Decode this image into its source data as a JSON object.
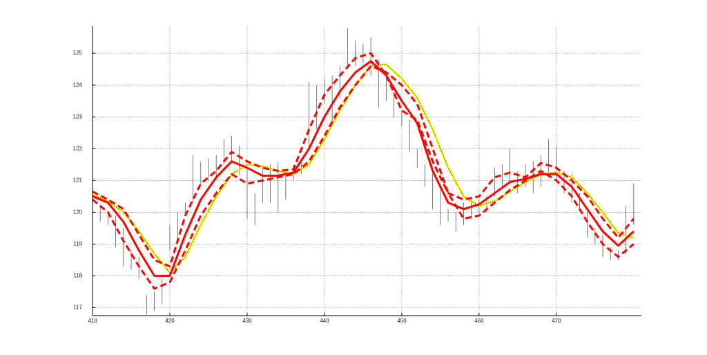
{
  "chart_data": {
    "type": "line",
    "x": [
      410,
      412,
      414,
      416,
      418,
      420,
      422,
      424,
      426,
      428,
      430,
      432,
      434,
      436,
      438,
      440,
      442,
      444,
      446,
      448,
      450,
      452,
      454,
      456,
      458,
      460,
      462,
      464,
      466,
      468,
      470,
      472,
      474,
      476,
      478,
      480
    ],
    "series": [
      {
        "color": "#ffff00",
        "style": "solid",
        "overlay": "#000000",
        "values": [
          120.55,
          120.35,
          120.0,
          119.4,
          118.7,
          118.1,
          118.6,
          119.6,
          120.5,
          121.2,
          121.5,
          121.45,
          121.3,
          121.2,
          121.5,
          122.3,
          123.2,
          124.0,
          124.6,
          124.65,
          124.2,
          123.6,
          122.6,
          121.4,
          120.5,
          120.2,
          120.35,
          120.65,
          120.95,
          121.2,
          121.25,
          121.1,
          120.6,
          120.0,
          119.35,
          119.2
        ]
      },
      {
        "color": "#ff0000",
        "style": "dashed",
        "values": [
          120.65,
          120.4,
          120.1,
          119.3,
          118.5,
          118.3,
          119.9,
          120.9,
          121.3,
          121.9,
          121.6,
          121.4,
          121.3,
          121.35,
          122.6,
          123.7,
          124.3,
          124.85,
          125.0,
          124.3,
          123.2,
          122.9,
          121.6,
          120.6,
          120.4,
          120.5,
          121.1,
          121.25,
          121.1,
          121.55,
          121.4,
          121.0,
          120.5,
          119.8,
          119.2,
          119.8
        ]
      },
      {
        "color": "#ff0000",
        "style": "dashed",
        "values": [
          120.4,
          120.0,
          119.1,
          118.3,
          117.6,
          117.8,
          118.8,
          119.9,
          120.6,
          121.2,
          120.9,
          121.0,
          121.1,
          121.2,
          121.6,
          122.4,
          123.3,
          124.0,
          124.6,
          124.4,
          124.0,
          123.4,
          122.0,
          120.6,
          119.8,
          119.9,
          120.3,
          120.7,
          121.0,
          121.3,
          121.0,
          120.5,
          119.7,
          119.0,
          118.6,
          119.0
        ]
      },
      {
        "color": "#ff0000",
        "style": "solid",
        "values": [
          120.5,
          120.3,
          119.7,
          118.8,
          118.0,
          118.0,
          119.3,
          120.4,
          121.1,
          121.6,
          121.4,
          121.15,
          121.15,
          121.25,
          122.0,
          123.0,
          123.8,
          124.4,
          124.75,
          124.3,
          123.5,
          122.8,
          121.3,
          120.3,
          120.1,
          120.25,
          120.6,
          120.95,
          121.05,
          121.2,
          121.2,
          120.8,
          120.1,
          119.4,
          118.95,
          119.4
        ]
      }
    ],
    "price": {
      "color": "#555555",
      "x": [
        410,
        411,
        412,
        413,
        414,
        415,
        416,
        417,
        418,
        419,
        420,
        421,
        422,
        423,
        424,
        425,
        426,
        427,
        428,
        429,
        430,
        431,
        432,
        433,
        434,
        435,
        436,
        437,
        438,
        439,
        440,
        441,
        442,
        443,
        444,
        445,
        446,
        447,
        448,
        449,
        450,
        451,
        452,
        453,
        454,
        455,
        456,
        457,
        458,
        459,
        460,
        461,
        462,
        463,
        464,
        465,
        466,
        467,
        468,
        469,
        470,
        471,
        472,
        473,
        474,
        475,
        476,
        477,
        478,
        479,
        480
      ],
      "high": [
        120.3,
        120.2,
        120.0,
        119.9,
        119.5,
        118.8,
        118.6,
        117.4,
        117.5,
        117.9,
        119.6,
        120.0,
        120.3,
        121.8,
        121.6,
        121.7,
        121.8,
        122.3,
        122.4,
        122.1,
        121.4,
        120.6,
        121.4,
        121.5,
        121.6,
        121.2,
        121.5,
        121.7,
        124.1,
        124.0,
        124.2,
        124.3,
        124.6,
        125.8,
        125.4,
        125.3,
        125.5,
        124.8,
        124.3,
        123.8,
        123.2,
        122.9,
        122.0,
        121.5,
        121.3,
        120.7,
        120.1,
        120.0,
        120.3,
        120.5,
        120.4,
        120.5,
        121.4,
        121.5,
        122.0,
        121.3,
        121.5,
        121.6,
        121.8,
        122.3,
        122.1,
        121.3,
        121.2,
        120.6,
        120.0,
        119.5,
        119.3,
        118.9,
        118.8,
        120.2,
        120.9
      ],
      "low": [
        119.9,
        119.7,
        119.6,
        118.9,
        118.3,
        118.2,
        117.9,
        116.8,
        116.9,
        117.1,
        118.8,
        119.0,
        119.9,
        120.3,
        120.9,
        121.1,
        121.0,
        121.5,
        121.6,
        121.2,
        119.8,
        119.6,
        120.3,
        120.3,
        120.0,
        120.4,
        121.0,
        121.2,
        122.0,
        122.6,
        123.4,
        122.8,
        123.6,
        124.5,
        124.6,
        124.7,
        124.3,
        123.3,
        123.5,
        123.0,
        122.7,
        121.9,
        121.4,
        120.8,
        120.1,
        119.6,
        119.7,
        119.4,
        119.6,
        119.8,
        120.0,
        120.0,
        120.5,
        120.8,
        120.9,
        120.6,
        120.8,
        120.6,
        120.8,
        121.1,
        121.0,
        120.6,
        120.3,
        120.1,
        119.2,
        119.0,
        118.6,
        118.5,
        118.5,
        118.7,
        119.6
      ]
    },
    "xlim": [
      410,
      481
    ],
    "ylim": [
      116.75,
      125.85
    ],
    "xticks": [
      410,
      420,
      430,
      440,
      450,
      460,
      470
    ],
    "yticks": [
      117,
      118,
      119,
      120,
      121,
      122,
      123,
      124,
      125
    ],
    "grid": true
  }
}
